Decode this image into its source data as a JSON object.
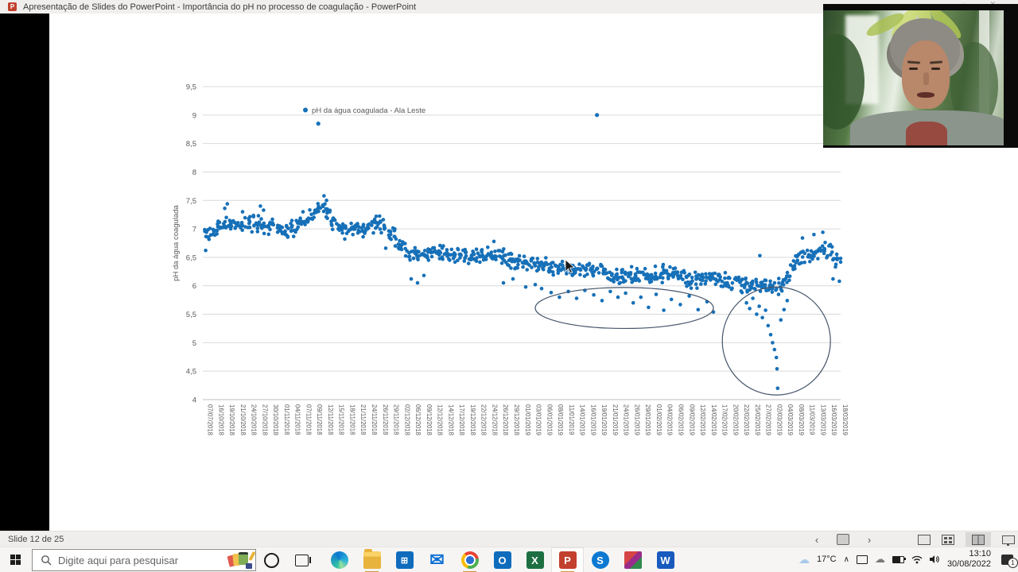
{
  "window": {
    "title": "Apresentação de Slides do PowerPoint - Importância do pH no processo de coagulação - PowerPoint",
    "app_icon": "powerpoint",
    "ppt_letter": "P"
  },
  "status_bar": {
    "slide_label": "Slide 12 de 25",
    "prev_icon": "‹",
    "next_icon": "›"
  },
  "taskbar": {
    "search_placeholder": "Digite aqui para pesquisar",
    "apps": [
      {
        "name": "edge",
        "style": "ic-edge",
        "letter": "",
        "underline": false,
        "active": false
      },
      {
        "name": "file-explorer",
        "style": "ic-explorer",
        "letter": "",
        "underline": true,
        "active": false
      },
      {
        "name": "microsoft-store",
        "style": "ic-store",
        "letter": "⊞",
        "underline": false,
        "active": false
      },
      {
        "name": "mail",
        "style": "ic-mail",
        "letter": "✉",
        "underline": false,
        "active": false
      },
      {
        "name": "chrome",
        "style": "ic-chrome",
        "letter": "",
        "underline": true,
        "active": false
      },
      {
        "name": "outlook",
        "style": "ic-outlook",
        "letter": "O",
        "underline": false,
        "active": false
      },
      {
        "name": "excel",
        "style": "ic-excel",
        "letter": "X",
        "underline": false,
        "active": false
      },
      {
        "name": "powerpoint",
        "style": "ic-ppt",
        "letter": "P",
        "underline": true,
        "active": true
      },
      {
        "name": "skype",
        "style": "ic-skype",
        "letter": "S",
        "underline": false,
        "active": false
      },
      {
        "name": "photos",
        "style": "ic-photos",
        "letter": "",
        "underline": false,
        "active": false
      },
      {
        "name": "word",
        "style": "ic-word",
        "letter": "W",
        "underline": false,
        "active": false
      }
    ],
    "tray": {
      "temperature": "17°C",
      "time": "13:10",
      "date": "30/08/2022",
      "notification_count": "1"
    }
  },
  "chart_data": {
    "type": "scatter",
    "title": "",
    "legend": "pH da água coagulada - Ala Leste",
    "ylabel": "pH da água coagulada",
    "ylim": [
      4,
      9.5
    ],
    "ytick_labels": [
      "9,5",
      "9",
      "8,5",
      "8",
      "7,5",
      "7",
      "6,5",
      "6",
      "5,5",
      "5",
      "4,5",
      "4"
    ],
    "grid": "horizontal",
    "legend_position": "inside-top",
    "point_color": "#1670B8",
    "annotation_color": "#44546A",
    "grid_color": "#D9D9D9",
    "axis_color": "#BFBFBF",
    "label_color": "#595959",
    "x_tick_labels": [
      "07/07/2018",
      "16/10/2018",
      "19/10/2018",
      "21/10/2018",
      "24/10/2018",
      "27/10/2018",
      "30/10/2018",
      "01/11/2018",
      "04/11/2018",
      "07/11/2018",
      "09/11/2018",
      "12/11/2018",
      "15/11/2018",
      "18/11/2018",
      "21/11/2018",
      "24/11/2018",
      "26/11/2018",
      "29/11/2018",
      "02/12/2018",
      "06/12/2018",
      "09/12/2018",
      "12/12/2018",
      "14/12/2018",
      "17/12/2018",
      "19/12/2018",
      "22/12/2018",
      "24/12/2018",
      "26/12/2018",
      "29/12/2018",
      "01/01/2019",
      "03/01/2019",
      "06/01/2019",
      "08/01/2019",
      "11/01/2019",
      "14/01/2019",
      "16/01/2019",
      "19/01/2019",
      "21/01/2019",
      "24/01/2019",
      "26/01/2019",
      "29/01/2019",
      "01/02/2019",
      "04/02/2019",
      "06/02/2019",
      "09/02/2019",
      "12/02/2019",
      "14/02/2019",
      "17/02/2019",
      "20/02/2019",
      "22/02/2019",
      "25/02/2019",
      "27/02/2019",
      "02/03/2019",
      "04/03/2019",
      "08/03/2019",
      "11/03/2019",
      "13/03/2019",
      "16/03/2019",
      "18/03/2019"
    ],
    "band_trend": [
      [
        0.0,
        6.9
      ],
      [
        0.02,
        7.02
      ],
      [
        0.05,
        7.08
      ],
      [
        0.08,
        7.1
      ],
      [
        0.1,
        7.05
      ],
      [
        0.12,
        6.95
      ],
      [
        0.14,
        7.02
      ],
      [
        0.16,
        7.12
      ],
      [
        0.185,
        7.45
      ],
      [
        0.2,
        7.1
      ],
      [
        0.22,
        6.98
      ],
      [
        0.25,
        7.0
      ],
      [
        0.275,
        7.1
      ],
      [
        0.3,
        6.85
      ],
      [
        0.32,
        6.55
      ],
      [
        0.35,
        6.55
      ],
      [
        0.38,
        6.55
      ],
      [
        0.41,
        6.5
      ],
      [
        0.44,
        6.55
      ],
      [
        0.47,
        6.5
      ],
      [
        0.5,
        6.42
      ],
      [
        0.53,
        6.38
      ],
      [
        0.56,
        6.3
      ],
      [
        0.59,
        6.28
      ],
      [
        0.62,
        6.32
      ],
      [
        0.64,
        6.15
      ],
      [
        0.67,
        6.2
      ],
      [
        0.7,
        6.18
      ],
      [
        0.73,
        6.22
      ],
      [
        0.76,
        6.1
      ],
      [
        0.79,
        6.12
      ],
      [
        0.82,
        6.08
      ],
      [
        0.85,
        6.05
      ],
      [
        0.88,
        6.0
      ],
      [
        0.9,
        5.95
      ],
      [
        0.915,
        6.1
      ],
      [
        0.93,
        6.45
      ],
      [
        0.95,
        6.55
      ],
      [
        0.965,
        6.6
      ],
      [
        0.98,
        6.65
      ],
      [
        1.0,
        6.35
      ]
    ],
    "band_point_count": 880,
    "band_spread": 0.085,
    "extra_points": [
      [
        0.002,
        6.62
      ],
      [
        0.285,
        6.66
      ],
      [
        0.3,
        6.7
      ],
      [
        0.325,
        6.12
      ],
      [
        0.335,
        6.05
      ],
      [
        0.345,
        6.18
      ],
      [
        0.47,
        6.05
      ],
      [
        0.485,
        6.12
      ],
      [
        0.505,
        5.98
      ],
      [
        0.52,
        6.02
      ],
      [
        0.53,
        5.95
      ],
      [
        0.545,
        5.88
      ],
      [
        0.558,
        5.8
      ],
      [
        0.572,
        5.9
      ],
      [
        0.585,
        5.78
      ],
      [
        0.598,
        5.92
      ],
      [
        0.612,
        5.84
      ],
      [
        0.625,
        5.74
      ],
      [
        0.638,
        5.9
      ],
      [
        0.65,
        5.8
      ],
      [
        0.662,
        5.87
      ],
      [
        0.674,
        5.7
      ],
      [
        0.686,
        5.8
      ],
      [
        0.698,
        5.62
      ],
      [
        0.71,
        5.85
      ],
      [
        0.722,
        5.57
      ],
      [
        0.734,
        5.76
      ],
      [
        0.748,
        5.67
      ],
      [
        0.762,
        5.82
      ],
      [
        0.776,
        5.58
      ],
      [
        0.79,
        5.72
      ],
      [
        0.8,
        5.54
      ],
      [
        0.845,
        5.88
      ],
      [
        0.852,
        5.7
      ],
      [
        0.857,
        5.6
      ],
      [
        0.862,
        5.78
      ],
      [
        0.868,
        5.5
      ],
      [
        0.872,
        5.64
      ],
      [
        0.877,
        5.44
      ],
      [
        0.882,
        5.57
      ],
      [
        0.886,
        5.3
      ],
      [
        0.89,
        5.14
      ],
      [
        0.893,
        5.0
      ],
      [
        0.896,
        4.88
      ],
      [
        0.899,
        4.74
      ],
      [
        0.9,
        4.54
      ],
      [
        0.901,
        4.2
      ],
      [
        0.906,
        5.4
      ],
      [
        0.911,
        5.58
      ],
      [
        0.916,
        5.74
      ],
      [
        0.873,
        6.53
      ],
      [
        0.928,
        6.3
      ],
      [
        0.94,
        6.84
      ],
      [
        0.958,
        6.9
      ],
      [
        0.972,
        6.94
      ],
      [
        0.988,
        6.12
      ],
      [
        0.998,
        6.08
      ],
      [
        0.032,
        7.36
      ],
      [
        0.036,
        7.44
      ],
      [
        0.06,
        7.3
      ],
      [
        0.088,
        7.4
      ],
      [
        0.093,
        7.33
      ],
      [
        0.155,
        7.3
      ],
      [
        0.188,
        7.58
      ],
      [
        0.192,
        7.5
      ],
      [
        0.27,
        7.22
      ],
      [
        0.455,
        6.78
      ]
    ],
    "high_outliers": [
      [
        0.179,
        8.85
      ],
      [
        0.617,
        9.0
      ]
    ],
    "annotations": {
      "ellipse": {
        "cx_t": 0.66,
        "cy_ph": 5.61,
        "rx_t": 0.14,
        "ry_ph": 0.36
      },
      "circle": {
        "cx_t": 0.899,
        "cy_ph": 5.03,
        "r_t": 0.085
      }
    }
  }
}
